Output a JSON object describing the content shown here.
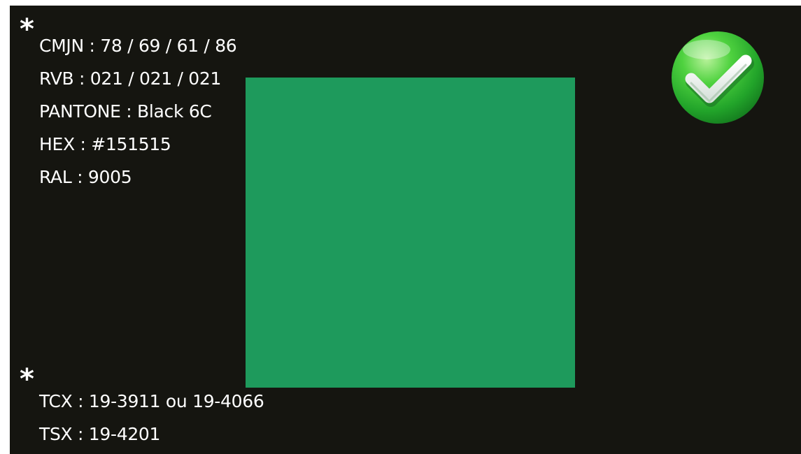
{
  "colors": {
    "background": "#151510",
    "swatch": "#1e9a5c",
    "text": "#ffffff",
    "badge": "#3fc83a"
  },
  "markers": {
    "top": "*",
    "bottom": "*"
  },
  "codes": {
    "cmjn": "CMJN : 78 / 69 / 61 / 86",
    "rvb": "RVB : 021 / 021 / 021",
    "pantone": "PANTONE : Black 6C",
    "hex": "HEX : #151515",
    "ral": "RAL : 9005",
    "tcx": "TCX : 19-3911 ou 19-4066",
    "tsx": "TSX : 19-4201"
  },
  "icons": {
    "badge": "green-checkmark-icon"
  }
}
